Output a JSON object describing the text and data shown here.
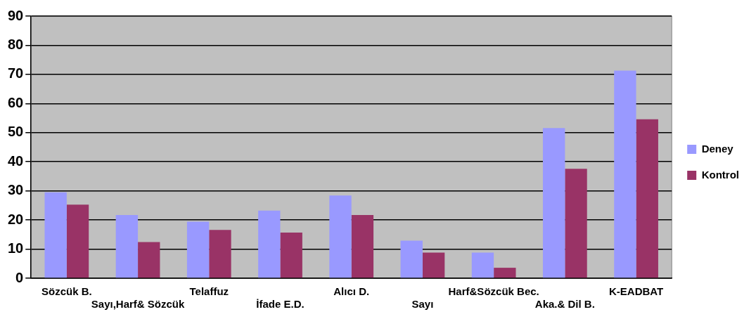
{
  "chart_data": {
    "type": "bar",
    "categories": [
      "Sözcük B.",
      "Sayı,Harf& Sözcük",
      "Telaffuz",
      "İfade E.D.",
      "Alıcı D.",
      "Sayı",
      "Harf&Sözcük Bec.",
      "Aka.& Dil B.",
      "K-EADBAT"
    ],
    "series": [
      {
        "name": "Deney",
        "color": "#9999ff",
        "values": [
          29.5,
          21.7,
          19.4,
          23.2,
          28.4,
          12.9,
          8.8,
          51.6,
          71.3
        ]
      },
      {
        "name": "Kontrol",
        "color": "#993366",
        "values": [
          25.3,
          12.4,
          16.6,
          15.7,
          21.7,
          8.8,
          3.6,
          37.6,
          54.6
        ]
      }
    ],
    "ylim": [
      0,
      90
    ],
    "yticks": [
      0,
      10,
      20,
      30,
      40,
      50,
      60,
      70,
      80,
      90
    ],
    "grid": "y",
    "legend": "right"
  }
}
